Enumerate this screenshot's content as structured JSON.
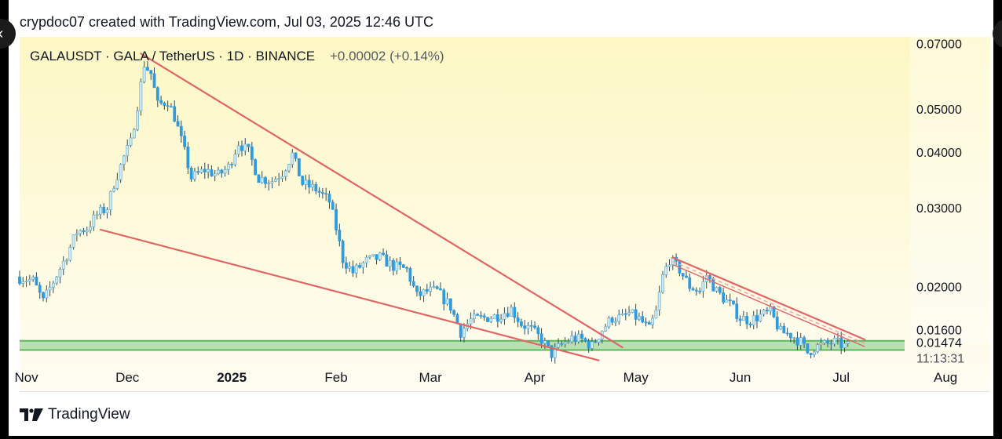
{
  "header": {
    "text": "crypdoc07 created with TradingView.com, Jul 03, 2025 12:46 UTC"
  },
  "footer": {
    "brand": "TradingView"
  },
  "nav": {
    "prev_icon": "chevron-left-icon",
    "next_icon": "chevron-right-icon"
  },
  "chart_data": {
    "type": "candlestick",
    "title": "GALAUSDT · GALA / TetherUS · 1D · BINANCE",
    "change": "+0.00002 (+0.14%)",
    "y_scale": "log",
    "ylim": [
      0.0138,
      0.0725
    ],
    "y_ticks": [
      "0.07000",
      "0.05000",
      "0.04000",
      "0.03000",
      "0.02000",
      "0.01600"
    ],
    "x_range": [
      "2024-10-30",
      "2025-08-11"
    ],
    "x_ticks": [
      {
        "date": "2024-11-01",
        "label": "Nov",
        "bold": false
      },
      {
        "date": "2024-12-01",
        "label": "Dec",
        "bold": false
      },
      {
        "date": "2025-01-01",
        "label": "2025",
        "bold": true
      },
      {
        "date": "2025-02-01",
        "label": "Feb",
        "bold": false
      },
      {
        "date": "2025-03-01",
        "label": "Mar",
        "bold": false
      },
      {
        "date": "2025-04-01",
        "label": "Apr",
        "bold": false
      },
      {
        "date": "2025-05-01",
        "label": "May",
        "bold": false
      },
      {
        "date": "2025-06-01",
        "label": "Jun",
        "bold": false
      },
      {
        "date": "2025-07-01",
        "label": "Jul",
        "bold": false
      },
      {
        "date": "2025-08-01",
        "label": "Aug",
        "bold": false
      }
    ],
    "last_price": "0.01474",
    "countdown": "11:13:31",
    "colors": {
      "up": "#cfe8f2",
      "down": "#2d9be0",
      "wick": "#2e4a5a",
      "trend": "#e06666",
      "zone": "#7fc97f"
    },
    "support_zone": [
      0.0144,
      0.0151
    ],
    "trendlines": [
      {
        "name": "wedge-upper",
        "from": [
          "2024-12-05",
          0.0665
        ],
        "to": [
          "2025-04-27",
          0.0146
        ]
      },
      {
        "name": "wedge-lower",
        "from": [
          "2024-11-23",
          0.0268
        ],
        "to": [
          "2025-04-20",
          0.01365
        ]
      },
      {
        "name": "descending-resistance",
        "from": [
          "2025-05-12",
          0.0232
        ],
        "to": [
          "2025-07-08",
          0.0152
        ]
      }
    ],
    "price_path": [
      [
        "2024-10-30",
        0.021
      ],
      [
        "2024-11-04",
        0.0206
      ],
      [
        "2024-11-07",
        0.0185
      ],
      [
        "2024-11-10",
        0.0205
      ],
      [
        "2024-11-14",
        0.0235
      ],
      [
        "2024-11-17",
        0.0265
      ],
      [
        "2024-11-20",
        0.027
      ],
      [
        "2024-11-23",
        0.029
      ],
      [
        "2024-11-26",
        0.03
      ],
      [
        "2024-11-28",
        0.034
      ],
      [
        "2024-12-01",
        0.039
      ],
      [
        "2024-12-03",
        0.042
      ],
      [
        "2024-12-05",
        0.051
      ],
      [
        "2024-12-07",
        0.063
      ],
      [
        "2024-12-09",
        0.06
      ],
      [
        "2024-12-11",
        0.051
      ],
      [
        "2024-12-14",
        0.052
      ],
      [
        "2024-12-16",
        0.048
      ],
      [
        "2024-12-19",
        0.04
      ],
      [
        "2024-12-21",
        0.035
      ],
      [
        "2024-12-25",
        0.0365
      ],
      [
        "2024-12-29",
        0.0355
      ],
      [
        "2025-01-01",
        0.037
      ],
      [
        "2025-01-04",
        0.042
      ],
      [
        "2025-01-07",
        0.04
      ],
      [
        "2025-01-10",
        0.035
      ],
      [
        "2025-01-14",
        0.0345
      ],
      [
        "2025-01-17",
        0.036
      ],
      [
        "2025-01-20",
        0.0395
      ],
      [
        "2025-01-23",
        0.034
      ],
      [
        "2025-01-27",
        0.033
      ],
      [
        "2025-01-31",
        0.031
      ],
      [
        "2025-02-02",
        0.027
      ],
      [
        "2025-02-04",
        0.023
      ],
      [
        "2025-02-07",
        0.0215
      ],
      [
        "2025-02-11",
        0.0228
      ],
      [
        "2025-02-15",
        0.0232
      ],
      [
        "2025-02-19",
        0.0222
      ],
      [
        "2025-02-23",
        0.0218
      ],
      [
        "2025-02-26",
        0.019
      ],
      [
        "2025-03-01",
        0.0195
      ],
      [
        "2025-03-04",
        0.0195
      ],
      [
        "2025-03-08",
        0.018
      ],
      [
        "2025-03-11",
        0.0158
      ],
      [
        "2025-03-14",
        0.0168
      ],
      [
        "2025-03-18",
        0.017
      ],
      [
        "2025-03-22",
        0.0172
      ],
      [
        "2025-03-26",
        0.0178
      ],
      [
        "2025-03-29",
        0.0165
      ],
      [
        "2025-04-01",
        0.016
      ],
      [
        "2025-04-04",
        0.0152
      ],
      [
        "2025-04-07",
        0.0141
      ],
      [
        "2025-04-10",
        0.0148
      ],
      [
        "2025-04-13",
        0.0153
      ],
      [
        "2025-04-16",
        0.0152
      ],
      [
        "2025-04-19",
        0.0147
      ],
      [
        "2025-04-22",
        0.016
      ],
      [
        "2025-04-25",
        0.017
      ],
      [
        "2025-04-28",
        0.017
      ],
      [
        "2025-04-30",
        0.0174
      ],
      [
        "2025-05-03",
        0.0169
      ],
      [
        "2025-05-06",
        0.016
      ],
      [
        "2025-05-08",
        0.0175
      ],
      [
        "2025-05-10",
        0.021
      ],
      [
        "2025-05-12",
        0.023
      ],
      [
        "2025-05-15",
        0.0218
      ],
      [
        "2025-05-18",
        0.02
      ],
      [
        "2025-05-21",
        0.0195
      ],
      [
        "2025-05-23",
        0.0212
      ],
      [
        "2025-05-26",
        0.0195
      ],
      [
        "2025-05-30",
        0.0182
      ],
      [
        "2025-06-02",
        0.017
      ],
      [
        "2025-06-05",
        0.0168
      ],
      [
        "2025-06-08",
        0.0172
      ],
      [
        "2025-06-11",
        0.0175
      ],
      [
        "2025-06-14",
        0.0158
      ],
      [
        "2025-06-17",
        0.0156
      ],
      [
        "2025-06-20",
        0.015
      ],
      [
        "2025-06-22",
        0.0142
      ],
      [
        "2025-06-24",
        0.0146
      ],
      [
        "2025-06-27",
        0.0148
      ],
      [
        "2025-06-30",
        0.015
      ],
      [
        "2025-07-03",
        0.0147
      ]
    ]
  }
}
